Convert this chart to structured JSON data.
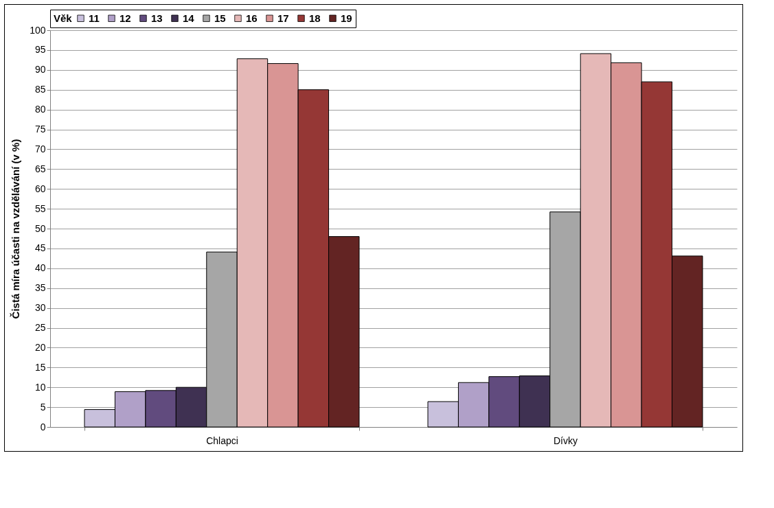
{
  "chart_data": {
    "type": "bar",
    "ylabel": "Čistá míra účasti na vzdělávání  (v %)",
    "legend_title": "Věk",
    "categories": [
      "Chlapci",
      "Dívky"
    ],
    "series": [
      {
        "name": "11",
        "color": "#c8c0dc",
        "values": [
          4.4,
          6.4
        ]
      },
      {
        "name": "12",
        "color": "#b0a0c8",
        "values": [
          8.9,
          11.2
        ]
      },
      {
        "name": "13",
        "color": "#614b7e",
        "values": [
          9.2,
          12.7
        ]
      },
      {
        "name": "14",
        "color": "#3f3152",
        "values": [
          10,
          12.9
        ]
      },
      {
        "name": "15",
        "color": "#a6a6a6",
        "values": [
          44.1,
          54.2
        ]
      },
      {
        "name": "16",
        "color": "#e5b8b7",
        "values": [
          92.8,
          94.1
        ]
      },
      {
        "name": "17",
        "color": "#d99594",
        "values": [
          91.6,
          91.8
        ]
      },
      {
        "name": "18",
        "color": "#953735",
        "values": [
          85,
          87
        ]
      },
      {
        "name": "19",
        "color": "#632423",
        "values": [
          48,
          43.1
        ]
      }
    ],
    "ylim": [
      0,
      100
    ],
    "yticks": [
      0,
      5,
      10,
      15,
      20,
      25,
      30,
      35,
      40,
      45,
      50,
      55,
      60,
      65,
      70,
      75,
      80,
      85,
      90,
      95,
      100
    ],
    "grid": "y",
    "legend": "top"
  }
}
